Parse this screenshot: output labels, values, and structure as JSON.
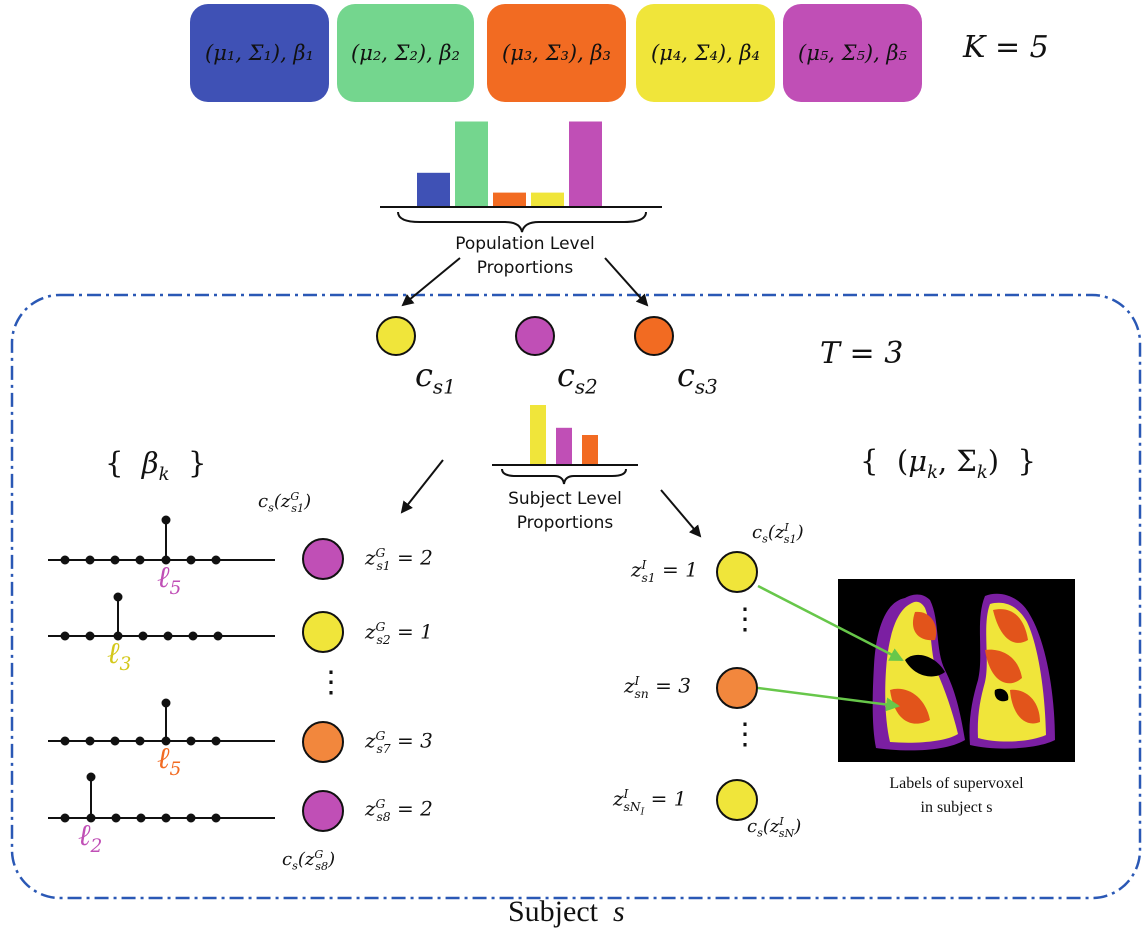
{
  "colors": {
    "blue": "#3f51b5",
    "green": "#74d68e",
    "orange": "#f26b22",
    "yellow": "#f0e53a",
    "magenta": "#c04fb6",
    "plate_border": "#2a58b5",
    "arrow_green": "#67c74a"
  },
  "clusters": {
    "boxes": [
      {
        "label": "(μ₁, Σ₁), β₁",
        "color": "#3f51b5"
      },
      {
        "label": "(μ₂, Σ₂), β₂",
        "color": "#74d68e"
      },
      {
        "label": "(μ₃, Σ₃), β₃",
        "color": "#f26b22"
      },
      {
        "label": "(μ₄, Σ₄), β₄",
        "color": "#f0e53a"
      },
      {
        "label": "(μ₅, Σ₅), β₅",
        "color": "#c04fb6"
      }
    ],
    "k_label": "K = 5"
  },
  "population": {
    "bar_values": [
      0.38,
      0.95,
      0.16,
      0.16,
      0.95
    ],
    "label_line1": "Population Level",
    "label_line2": "Proportions"
  },
  "plate": {
    "t_label": "T = 3",
    "subject_label": "Subject s",
    "components": [
      {
        "label": "c_s1",
        "color": "#f0e53a"
      },
      {
        "label": "c_s2",
        "color": "#c04fb6"
      },
      {
        "label": "c_s3",
        "color": "#f26b22"
      }
    ]
  },
  "subject": {
    "bar_values": [
      1.0,
      0.62,
      0.5
    ],
    "label_line1": "Subject Level",
    "label_line2": "Proportions"
  },
  "beta_set": "{ β_k }",
  "mu_sigma_set": "{ (μ_k, Σ_k) }",
  "global_nodes": {
    "top_label": "c_s(z^G_s1)",
    "bottom_label": "c_s(z^G_s8)",
    "ell_labels": [
      "ℓ5",
      "ℓ3",
      "ℓ5",
      "ℓ2"
    ],
    "z_labels": [
      "z^G_s1 = 2",
      "z^G_s2 = 1",
      "z^G_s7 = 3",
      "z^G_s8 = 2"
    ],
    "dots": "⋮"
  },
  "local_nodes": {
    "top_label": "c_s(z^I_s1)",
    "bottom_label": "c_s(z^I_sN)",
    "z_labels": [
      "z^I_s1 = 1",
      "z^I_sn = 3",
      "z^I_sN_I = 1"
    ],
    "dots": "⋮"
  },
  "ct_image": {
    "caption_line1": "Labels of supervoxel",
    "caption_line2": "in subject s"
  }
}
